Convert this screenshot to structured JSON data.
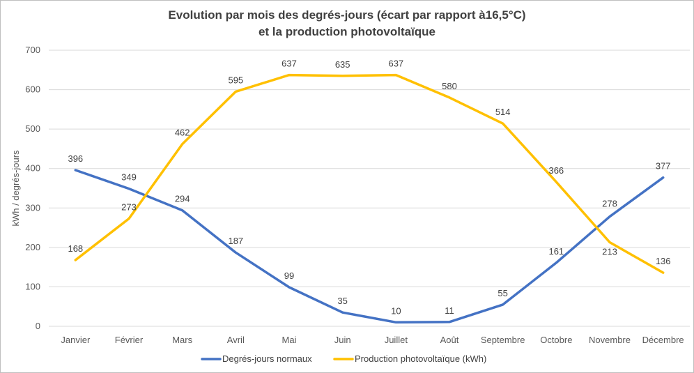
{
  "chart_data": {
    "type": "line",
    "title": "Evolution par mois des degrés-jours (écart par rapport à16,5°C)",
    "subtitle": "et la production photovoltaïque",
    "xlabel": "",
    "ylabel": "kWh / degrés-jours",
    "ylim": [
      0,
      700
    ],
    "yticks": [
      0,
      100,
      200,
      300,
      400,
      500,
      600,
      700
    ],
    "grid": true,
    "legend": "bottom",
    "categories": [
      "Janvier",
      "Février",
      "Mars",
      "Avril",
      "Mai",
      "Juin",
      "Juillet",
      "Août",
      "Septembre",
      "Octobre",
      "Novembre",
      "Décembre"
    ],
    "series": [
      {
        "name": "Degrés-jours normaux",
        "color": "#4472c4",
        "values": [
          396,
          349,
          294,
          187,
          99,
          35,
          10,
          11,
          55,
          161,
          278,
          377
        ]
      },
      {
        "name": "Production photovoltaïque (kWh)",
        "color": "#ffc000",
        "values": [
          168,
          273,
          462,
          595,
          637,
          635,
          637,
          580,
          514,
          366,
          213,
          136
        ]
      }
    ]
  }
}
